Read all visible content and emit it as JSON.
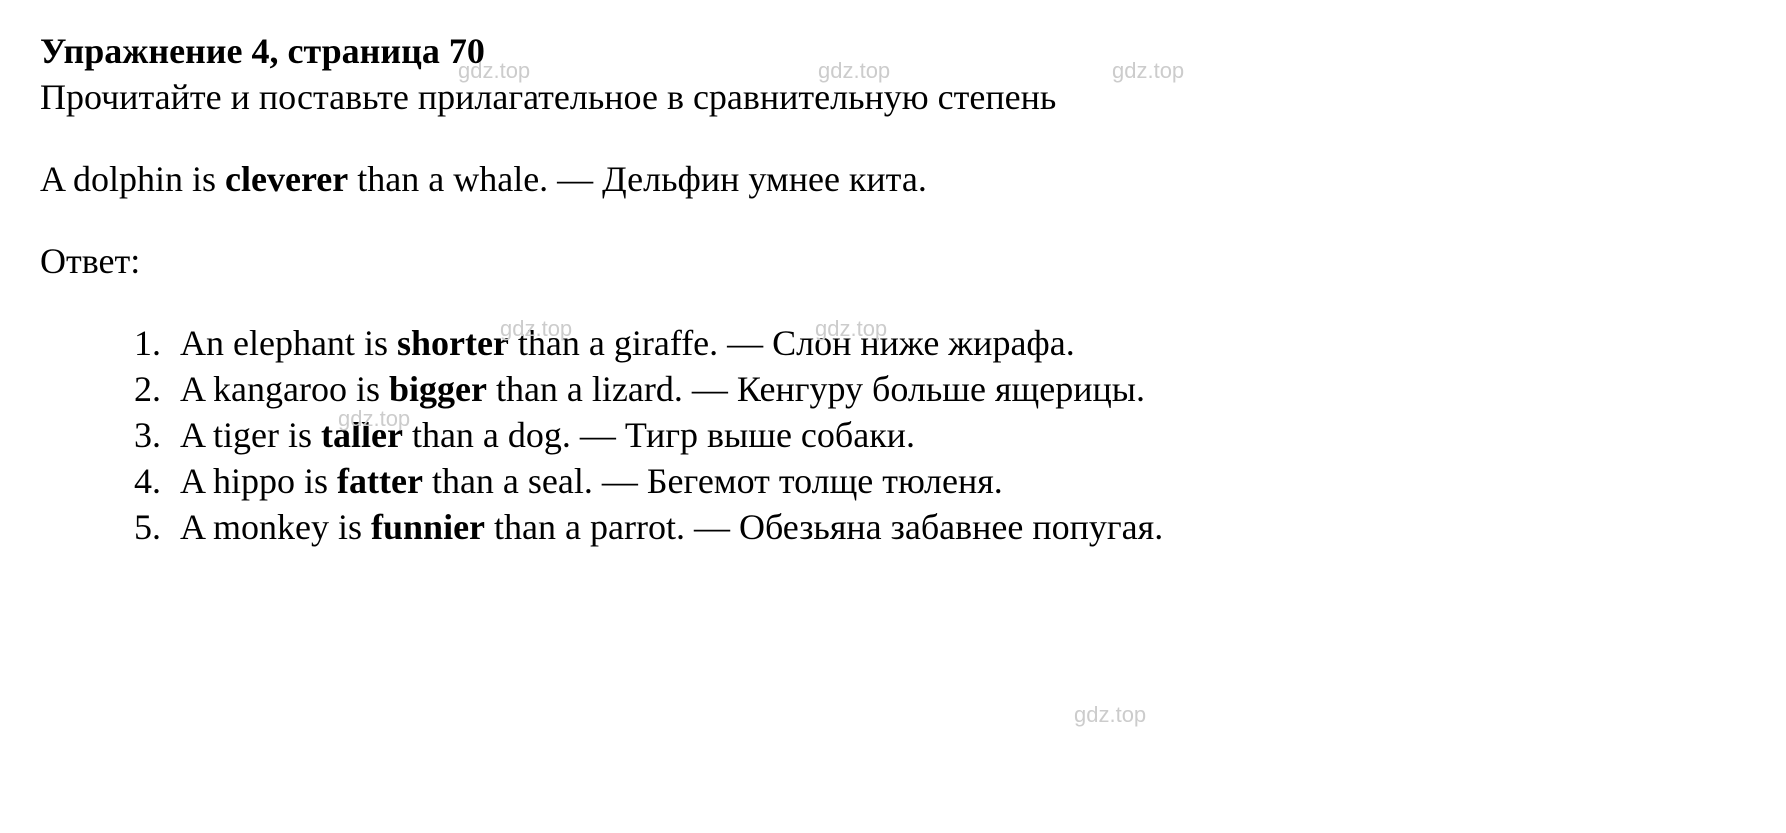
{
  "title": "Упражнение 4, страница 70",
  "instruction": "Прочитайте и поставьте прилагательное в сравнительную степень",
  "example": {
    "prefix": "A dolphin is ",
    "bold": "cleverer",
    "suffix": " than a whale. — Дельфин умнее кита."
  },
  "answer_label": "Ответ:",
  "answers": [
    {
      "prefix": "An elephant is ",
      "bold": "shorter",
      "suffix": " than a giraffe. — Слон ниже жирафа."
    },
    {
      "prefix": "A kangaroo is ",
      "bold": "bigger",
      "suffix": " than a lizard. — Кенгуру больше ящерицы."
    },
    {
      "prefix": "A tiger is ",
      "bold": "taller",
      "suffix": " than a dog. — Тигр выше собаки."
    },
    {
      "prefix": "A hippo is ",
      "bold": "fatter",
      "suffix": " than a seal. — Бегемот толще тюленя."
    },
    {
      "prefix": "A monkey is ",
      "bold": "funnier",
      "suffix": " than a parrot. — Обезьяна забавнее попугая."
    }
  ],
  "watermark_text": "gdz.top",
  "colors": {
    "text": "#000000",
    "background": "#ffffff",
    "watermark": "#cccccc"
  },
  "typography": {
    "title_fontsize": 36,
    "body_fontsize": 36,
    "watermark_fontsize": 22,
    "font_family": "Times New Roman"
  }
}
